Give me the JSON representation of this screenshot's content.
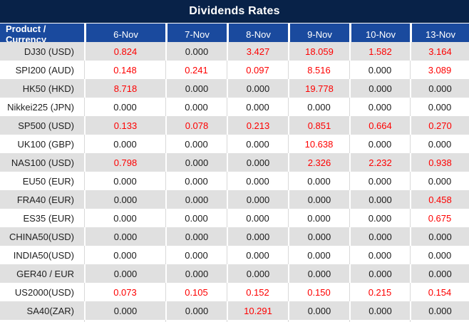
{
  "title": "Dividends Rates",
  "table": {
    "product_header": "Product / Currency",
    "date_columns": [
      "6-Nov",
      "7-Nov",
      "8-Nov",
      "9-Nov",
      "10-Nov",
      "13-Nov"
    ],
    "rows": [
      {
        "product": "DJ30 (USD)",
        "values": [
          "0.824",
          "0.000",
          "3.427",
          "18.059",
          "1.582",
          "3.164"
        ]
      },
      {
        "product": "SPI200 (AUD)",
        "values": [
          "0.148",
          "0.241",
          "0.097",
          "8.516",
          "0.000",
          "3.089"
        ]
      },
      {
        "product": "HK50 (HKD)",
        "values": [
          "8.718",
          "0.000",
          "0.000",
          "19.778",
          "0.000",
          "0.000"
        ]
      },
      {
        "product": "Nikkei225 (JPN)",
        "values": [
          "0.000",
          "0.000",
          "0.000",
          "0.000",
          "0.000",
          "0.000"
        ]
      },
      {
        "product": "SP500 (USD)",
        "values": [
          "0.133",
          "0.078",
          "0.213",
          "0.851",
          "0.664",
          "0.270"
        ]
      },
      {
        "product": "UK100 (GBP)",
        "values": [
          "0.000",
          "0.000",
          "0.000",
          "10.638",
          "0.000",
          "0.000"
        ]
      },
      {
        "product": "NAS100 (USD)",
        "values": [
          "0.798",
          "0.000",
          "0.000",
          "2.326",
          "2.232",
          "0.938"
        ]
      },
      {
        "product": "EU50 (EUR)",
        "values": [
          "0.000",
          "0.000",
          "0.000",
          "0.000",
          "0.000",
          "0.000"
        ]
      },
      {
        "product": "FRA40 (EUR)",
        "values": [
          "0.000",
          "0.000",
          "0.000",
          "0.000",
          "0.000",
          "0.458"
        ]
      },
      {
        "product": "ES35 (EUR)",
        "values": [
          "0.000",
          "0.000",
          "0.000",
          "0.000",
          "0.000",
          "0.675"
        ]
      },
      {
        "product": "CHINA50(USD)",
        "values": [
          "0.000",
          "0.000",
          "0.000",
          "0.000",
          "0.000",
          "0.000"
        ]
      },
      {
        "product": "INDIA50(USD)",
        "values": [
          "0.000",
          "0.000",
          "0.000",
          "0.000",
          "0.000",
          "0.000"
        ]
      },
      {
        "product": "GER40 / EUR",
        "values": [
          "0.000",
          "0.000",
          "0.000",
          "0.000",
          "0.000",
          "0.000"
        ]
      },
      {
        "product": "US2000(USD)",
        "values": [
          "0.073",
          "0.105",
          "0.152",
          "0.150",
          "0.215",
          "0.154"
        ]
      },
      {
        "product": "SA40(ZAR)",
        "values": [
          "0.000",
          "0.000",
          "10.291",
          "0.000",
          "0.000",
          "0.000"
        ]
      }
    ]
  },
  "colors": {
    "title_bg": "#082248",
    "header_bg": "#1a4a9e",
    "row_alt_bg": "#e0e0e0",
    "value_nonzero": "#fe0000",
    "value_zero": "#1a1a1a"
  }
}
